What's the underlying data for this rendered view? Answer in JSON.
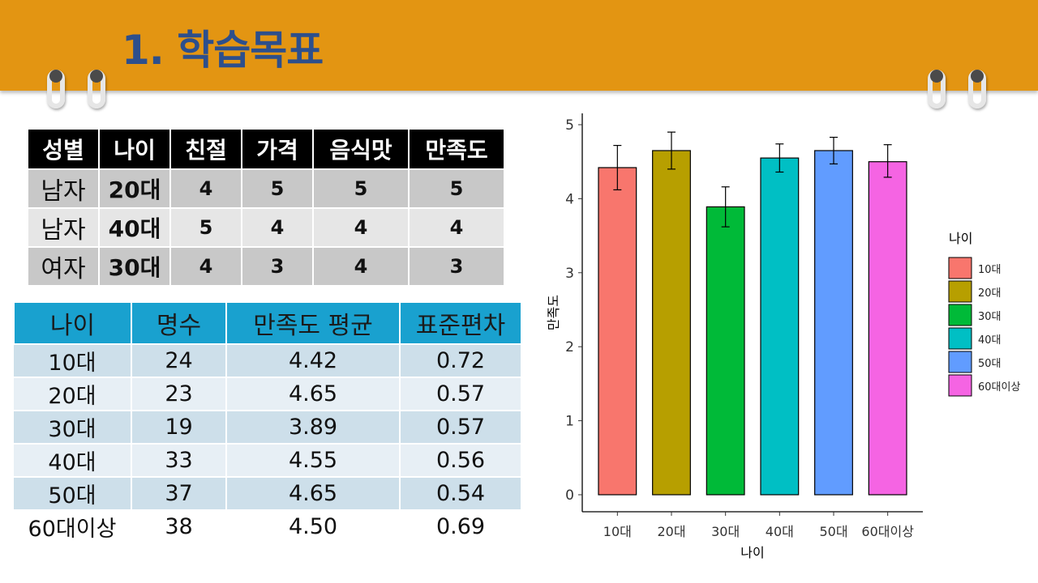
{
  "slide": {
    "title": "1. 학습목표"
  },
  "table1": {
    "headers": [
      "성별",
      "나이",
      "친절",
      "가격",
      "음식맛",
      "만족도"
    ],
    "rows": [
      [
        "남자",
        "20대",
        "4",
        "5",
        "5",
        "5"
      ],
      [
        "남자",
        "40대",
        "5",
        "4",
        "4",
        "4"
      ],
      [
        "여자",
        "30대",
        "4",
        "3",
        "4",
        "3"
      ]
    ]
  },
  "table2": {
    "headers": [
      "나이",
      "명수",
      "만족도 평균",
      "표준편차"
    ],
    "rows": [
      [
        "10대",
        "24",
        "4.42",
        "0.72"
      ],
      [
        "20대",
        "23",
        "4.65",
        "0.57"
      ],
      [
        "30대",
        "19",
        "3.89",
        "0.57"
      ],
      [
        "40대",
        "33",
        "4.55",
        "0.56"
      ],
      [
        "50대",
        "37",
        "4.65",
        "0.54"
      ],
      [
        "60대이상",
        "38",
        "4.50",
        "0.69"
      ]
    ]
  },
  "chart_data": {
    "type": "bar",
    "categories": [
      "10대",
      "20대",
      "30대",
      "40대",
      "50대",
      "60대이상"
    ],
    "values": [
      4.42,
      4.65,
      3.89,
      4.55,
      4.65,
      4.5
    ],
    "error_low": [
      4.12,
      4.4,
      3.62,
      4.36,
      4.47,
      4.29
    ],
    "error_high": [
      4.72,
      4.9,
      4.16,
      4.74,
      4.83,
      4.73
    ],
    "colors": [
      "#f8766d",
      "#b79f00",
      "#00ba38",
      "#00bfc4",
      "#619cff",
      "#f564e3"
    ],
    "xlabel": "나이",
    "ylabel": "만족도",
    "ylim": [
      0,
      5
    ],
    "yticks": [
      0,
      1,
      2,
      3,
      4,
      5
    ],
    "grid": false,
    "legend": {
      "title": "나이",
      "position": "right",
      "entries": [
        "10대",
        "20대",
        "30대",
        "40대",
        "50대",
        "60대이상"
      ]
    }
  }
}
